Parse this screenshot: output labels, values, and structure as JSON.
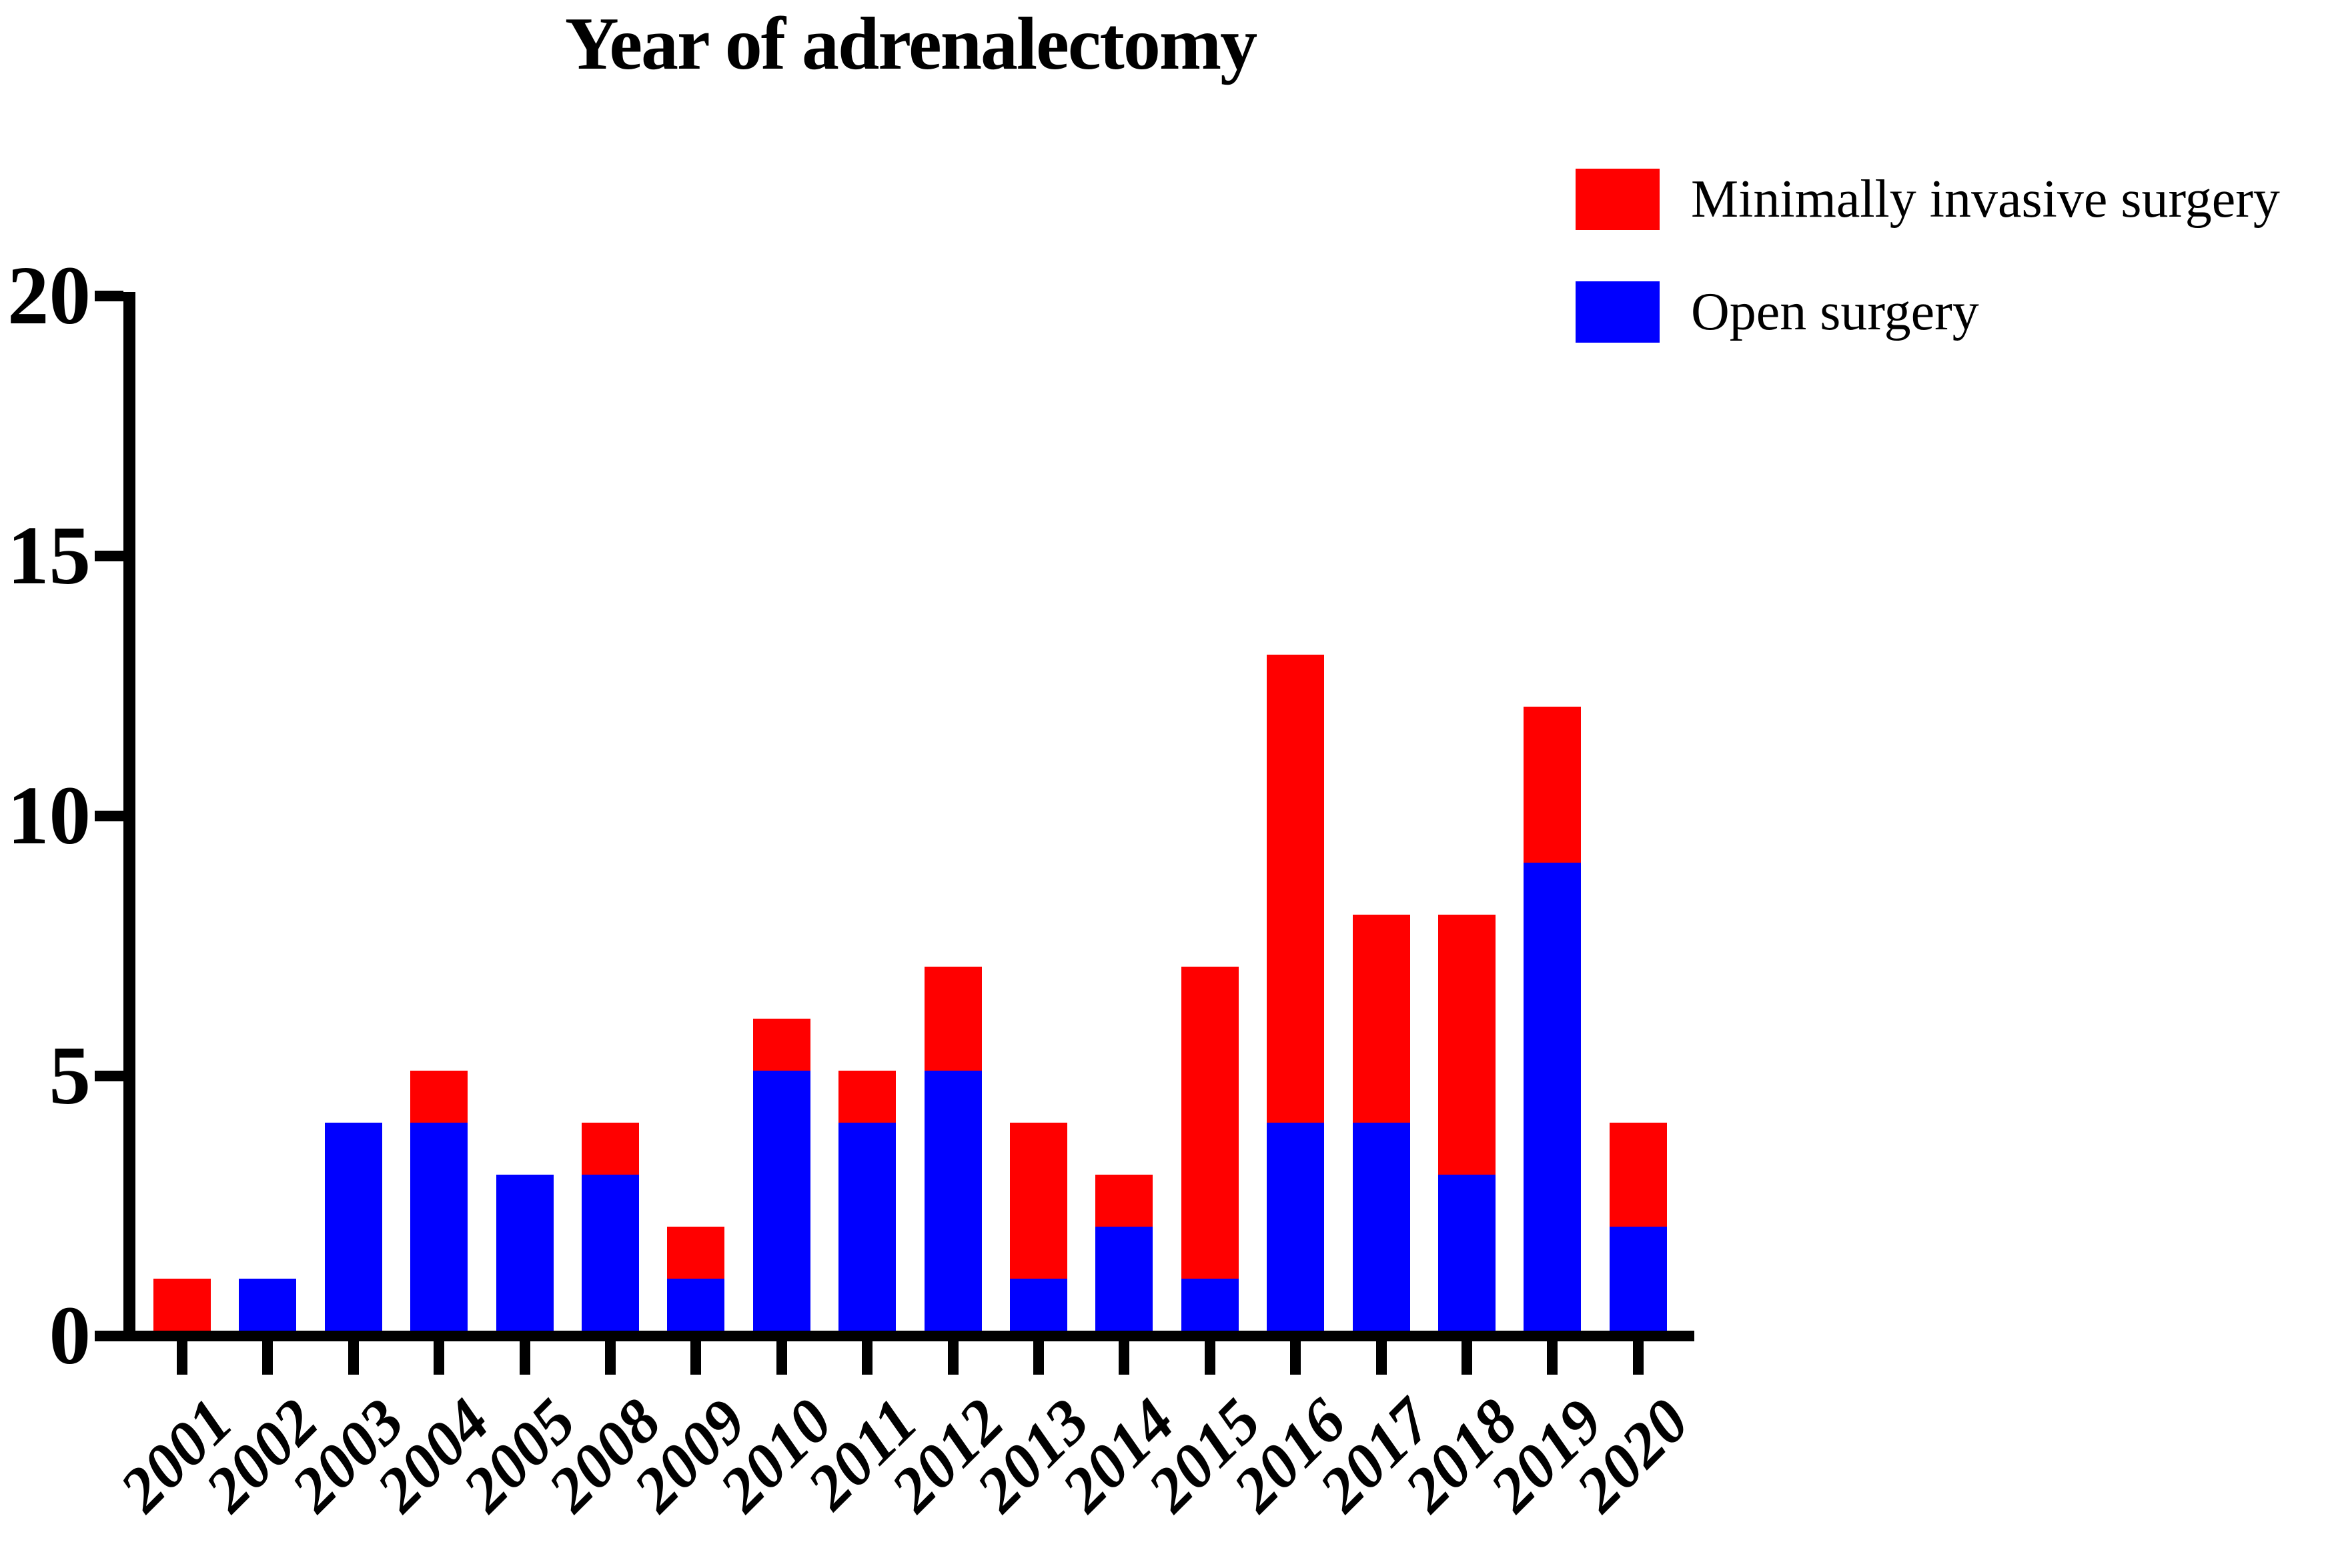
{
  "chart_data": {
    "type": "bar",
    "stacked": true,
    "title": "Year of adrenalectomy",
    "categories": [
      "2001",
      "2002",
      "2003",
      "2004",
      "2005",
      "2008",
      "2009",
      "2010",
      "2011",
      "2012",
      "2013",
      "2014",
      "2015",
      "2016",
      "2017",
      "2018",
      "2019",
      "2020"
    ],
    "series": [
      {
        "name": "Open surgery",
        "color": "#0000FF",
        "values": [
          0,
          1,
          4,
          4,
          3,
          3,
          1,
          5,
          4,
          5,
          1,
          2,
          1,
          4,
          4,
          3,
          9,
          2
        ]
      },
      {
        "name": "Minimally invasive surgery",
        "color": "#FF0000",
        "values": [
          1,
          0,
          0,
          1,
          0,
          1,
          1,
          1,
          1,
          2,
          3,
          1,
          6,
          9,
          4,
          5,
          3,
          2
        ]
      }
    ],
    "totals": [
      1,
      1,
      4,
      5,
      3,
      4,
      2,
      6,
      5,
      7,
      4,
      3,
      7,
      13,
      8,
      8,
      12,
      4
    ],
    "xlabel": "",
    "ylabel": "",
    "ylim": [
      0,
      20
    ],
    "yticks": [
      0,
      5,
      10,
      15,
      20
    ],
    "grid": false,
    "legend_position": "top-right",
    "axis_color": "#000000",
    "background": "#FFFFFF",
    "x_tick_label_rotation_deg": 45
  },
  "legend": [
    {
      "label": "Minimally invasive surgery",
      "color": "#FF0000"
    },
    {
      "label": "Open surgery",
      "color": "#0000FF"
    }
  ]
}
